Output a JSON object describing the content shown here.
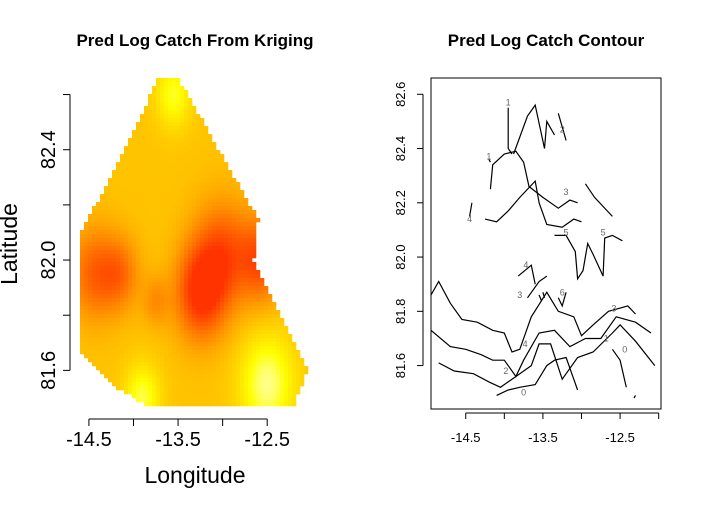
{
  "chart_data": [
    {
      "type": "heatmap",
      "title": "Pred Log Catch From Kriging",
      "xlabel": "Longitude",
      "ylabel": "Latitude",
      "xlim": [
        -14.6,
        -12.02
      ],
      "ylim": [
        81.46,
        82.66
      ],
      "xticks": [
        -14.5,
        -13.5,
        -12.5
      ],
      "xtick_labels": [
        "-14.5",
        "-13.5",
        "-12.5"
      ],
      "yticks": [
        81.6,
        81.8,
        82.0,
        82.2,
        82.4,
        82.6
      ],
      "ytick_labels": [
        "81.6",
        "",
        "82.0",
        "",
        "82.4",
        ""
      ],
      "colormap": [
        "#ffffcc",
        "#ffff00",
        "#ffcc00",
        "#ff9900",
        "#ff6600",
        "#ff3300"
      ],
      "domain_polygon": [
        [
          -13.72,
          82.66
        ],
        [
          -13.5,
          82.66
        ],
        [
          -12.6,
          82.15
        ],
        [
          -12.65,
          82.0
        ],
        [
          -12.35,
          81.8
        ],
        [
          -12.05,
          81.6
        ],
        [
          -12.2,
          81.47
        ],
        [
          -13.85,
          81.47
        ],
        [
          -14.25,
          81.55
        ],
        [
          -14.6,
          81.67
        ],
        [
          -14.6,
          82.1
        ],
        [
          -14.22,
          82.32
        ]
      ],
      "hotspots": [
        {
          "lon": -13.25,
          "lat": 81.88,
          "value": 6.0,
          "spread": 0.28
        },
        {
          "lon": -13.0,
          "lat": 82.02,
          "value": 5.2,
          "spread": 0.32
        },
        {
          "lon": -12.55,
          "lat": 82.0,
          "value": 5.3,
          "spread": 0.25
        },
        {
          "lon": -14.45,
          "lat": 81.95,
          "value": 4.8,
          "spread": 0.28
        },
        {
          "lon": -13.75,
          "lat": 81.85,
          "value": 3.8,
          "spread": 0.15
        },
        {
          "lon": -14.15,
          "lat": 81.95,
          "value": 4.4,
          "spread": 0.22
        }
      ],
      "coldspots": [
        {
          "lon": -13.55,
          "lat": 82.6,
          "value": 1.0,
          "spread": 0.2
        },
        {
          "lon": -12.5,
          "lat": 81.55,
          "value": 0.4,
          "spread": 0.3
        },
        {
          "lon": -13.9,
          "lat": 81.5,
          "value": 0.8,
          "spread": 0.2
        }
      ]
    },
    {
      "type": "contour",
      "title": "Pred Log Catch Contour",
      "xlabel": "",
      "ylabel": "",
      "xlim": [
        -14.95,
        -11.97
      ],
      "ylim": [
        81.44,
        82.66
      ],
      "xticks": [
        -14.5,
        -14.0,
        -13.5,
        -13.0,
        -12.5,
        -12.0
      ],
      "xtick_labels": [
        "-14.5",
        "",
        "-13.5",
        "",
        "-12.5",
        ""
      ],
      "yticks": [
        81.6,
        81.8,
        82.0,
        82.2,
        82.4,
        82.6
      ],
      "ytick_labels": [
        "81.6",
        "81.8",
        "82.0",
        "82.2",
        "82.4",
        "82.6"
      ],
      "contours": [
        {
          "level": "1",
          "points": [
            [
              -13.95,
              82.55
            ],
            [
              -13.95,
              82.4
            ],
            [
              -13.9,
              82.38
            ]
          ]
        },
        {
          "level": "2",
          "points": [
            [
              -13.88,
              82.38
            ],
            [
              -13.7,
              82.52
            ],
            [
              -13.6,
              82.56
            ],
            [
              -13.48,
              82.4
            ],
            [
              -13.45,
              82.5
            ],
            [
              -13.35,
              82.45
            ]
          ]
        },
        {
          "level": "2",
          "points": [
            [
              -13.3,
              82.53
            ],
            [
              -13.2,
              82.43
            ]
          ]
        },
        {
          "level": "1",
          "points": [
            [
              -14.2,
              82.36
            ],
            [
              -14.18,
              82.35
            ]
          ]
        },
        {
          "level": "3",
          "points": [
            [
              -14.18,
              82.25
            ],
            [
              -14.15,
              82.34
            ],
            [
              -14.0,
              82.38
            ],
            [
              -13.85,
              82.39
            ],
            [
              -13.75,
              82.35
            ],
            [
              -13.68,
              82.26
            ],
            [
              -13.5,
              82.22
            ],
            [
              -13.3,
              82.18
            ],
            [
              -13.15,
              82.21
            ],
            [
              -13.05,
              82.2
            ]
          ]
        },
        {
          "level": "3",
          "points": [
            [
              -12.95,
              82.27
            ],
            [
              -12.83,
              82.22
            ],
            [
              -12.6,
              82.15
            ]
          ]
        },
        {
          "level": "4",
          "points": [
            [
              -14.45,
              82.15
            ],
            [
              -14.42,
              82.2
            ]
          ]
        },
        {
          "level": "4",
          "points": [
            [
              -14.25,
              82.14
            ],
            [
              -14.1,
              82.13
            ],
            [
              -13.95,
              82.17
            ],
            [
              -13.8,
              82.22
            ],
            [
              -13.6,
              82.28
            ],
            [
              -13.55,
              82.2
            ],
            [
              -13.45,
              82.12
            ],
            [
              -13.25,
              82.11
            ],
            [
              -13.1,
              82.14
            ],
            [
              -13.0,
              82.13
            ]
          ]
        },
        {
          "level": "5",
          "points": [
            [
              -13.35,
              82.08
            ],
            [
              -13.2,
              82.08
            ],
            [
              -13.08,
              82.02
            ],
            [
              -13.05,
              81.92
            ],
            [
              -12.98,
              81.95
            ],
            [
              -12.92,
              82.05
            ],
            [
              -12.85,
              82.01
            ],
            [
              -12.72,
              81.93
            ],
            [
              -12.7,
              82.07
            ],
            [
              -12.6,
              82.08
            ],
            [
              -12.47,
              82.06
            ]
          ]
        },
        {
          "level": "4",
          "points": [
            [
              -13.6,
              81.9
            ],
            [
              -13.65,
              81.97
            ],
            [
              -13.82,
              81.93
            ]
          ]
        },
        {
          "level": "3",
          "points": [
            [
              -13.7,
              81.85
            ],
            [
              -13.55,
              81.91
            ],
            [
              -13.45,
              81.93
            ]
          ]
        },
        {
          "level": "6",
          "points": [
            [
              -13.2,
              81.87
            ],
            [
              -13.25,
              81.82
            ],
            [
              -13.3,
              81.85
            ]
          ]
        },
        {
          "level": "5",
          "points": [
            [
              -13.5,
              81.87
            ],
            [
              -13.48,
              81.85
            ]
          ]
        },
        {
          "level": "6",
          "points": [
            [
              -13.55,
              81.86
            ],
            [
              -13.52,
              81.84
            ]
          ]
        },
        {
          "level": "3",
          "points": [
            [
              -14.95,
              81.86
            ],
            [
              -14.85,
              81.91
            ],
            [
              -14.7,
              81.83
            ],
            [
              -14.55,
              81.77
            ],
            [
              -14.35,
              81.76
            ],
            [
              -14.15,
              81.73
            ],
            [
              -14.0,
              81.72
            ],
            [
              -13.9,
              81.65
            ],
            [
              -13.8,
              81.66
            ],
            [
              -13.65,
              81.78
            ],
            [
              -13.45,
              81.87
            ],
            [
              -13.3,
              81.8
            ],
            [
              -13.1,
              81.78
            ],
            [
              -13.0,
              81.71
            ],
            [
              -12.85,
              81.75
            ],
            [
              -12.65,
              81.8
            ],
            [
              -12.4,
              81.82
            ],
            [
              -12.3,
              81.79
            ]
          ]
        },
        {
          "level": "4",
          "points": [
            [
              -14.95,
              81.73
            ],
            [
              -14.7,
              81.67
            ],
            [
              -14.5,
              81.66
            ],
            [
              -14.3,
              81.64
            ],
            [
              -14.15,
              81.62
            ],
            [
              -14.0,
              81.62
            ],
            [
              -13.85,
              81.56
            ],
            [
              -13.75,
              81.62
            ],
            [
              -13.55,
              81.72
            ],
            [
              -13.35,
              81.73
            ],
            [
              -13.15,
              81.67
            ],
            [
              -12.95,
              81.7
            ],
            [
              -12.75,
              81.7
            ],
            [
              -12.55,
              81.78
            ],
            [
              -12.3,
              81.76
            ],
            [
              -12.1,
              81.72
            ]
          ]
        },
        {
          "level": "2",
          "points": [
            [
              -14.85,
              81.61
            ],
            [
              -14.65,
              81.58
            ],
            [
              -14.4,
              81.57
            ],
            [
              -14.2,
              81.54
            ],
            [
              -14.05,
              81.52
            ],
            [
              -13.9,
              81.55
            ],
            [
              -13.8,
              81.57
            ],
            [
              -13.65,
              81.6
            ],
            [
              -13.55,
              81.68
            ],
            [
              -13.4,
              81.68
            ],
            [
              -13.25,
              81.55
            ],
            [
              -13.05,
              81.63
            ],
            [
              -12.85,
              81.65
            ],
            [
              -12.6,
              81.72
            ],
            [
              -12.5,
              81.75
            ],
            [
              -12.3,
              81.69
            ],
            [
              -12.05,
              81.6
            ]
          ]
        },
        {
          "level": "0",
          "points": [
            [
              -14.1,
              81.49
            ],
            [
              -13.95,
              81.51
            ],
            [
              -13.8,
              81.52
            ],
            [
              -13.6,
              81.53
            ],
            [
              -13.45,
              81.6
            ],
            [
              -13.35,
              81.62
            ],
            [
              -13.2,
              81.63
            ],
            [
              -13.05,
              81.51
            ]
          ]
        },
        {
          "level": "1",
          "points": [
            [
              -12.6,
              81.66
            ],
            [
              -12.5,
              81.62
            ],
            [
              -12.42,
              81.52
            ]
          ]
        },
        {
          "level": "0",
          "points": [
            [
              -12.32,
              81.48
            ],
            [
              -12.3,
              81.49
            ]
          ]
        }
      ],
      "contour_labels": [
        {
          "text": "1",
          "lon": -13.95,
          "lat": 82.57
        },
        {
          "text": "2",
          "lon": -13.25,
          "lat": 82.47
        },
        {
          "text": "1",
          "lon": -14.2,
          "lat": 82.37
        },
        {
          "text": "3",
          "lon": -13.2,
          "lat": 82.24
        },
        {
          "text": "4",
          "lon": -14.45,
          "lat": 82.14
        },
        {
          "text": "5",
          "lon": -13.2,
          "lat": 82.09
        },
        {
          "text": "5",
          "lon": -12.72,
          "lat": 82.09
        },
        {
          "text": "4",
          "lon": -13.72,
          "lat": 81.97
        },
        {
          "text": "3",
          "lon": -13.8,
          "lat": 81.86
        },
        {
          "text": "6",
          "lon": -13.25,
          "lat": 81.87
        },
        {
          "text": "3",
          "lon": -12.58,
          "lat": 81.81
        },
        {
          "text": "4",
          "lon": -13.73,
          "lat": 81.68
        },
        {
          "text": "1",
          "lon": -12.68,
          "lat": 81.7
        },
        {
          "text": "0",
          "lon": -12.44,
          "lat": 81.66
        },
        {
          "text": "2",
          "lon": -13.98,
          "lat": 81.58
        },
        {
          "text": "0",
          "lon": -13.75,
          "lat": 81.5
        }
      ]
    }
  ]
}
